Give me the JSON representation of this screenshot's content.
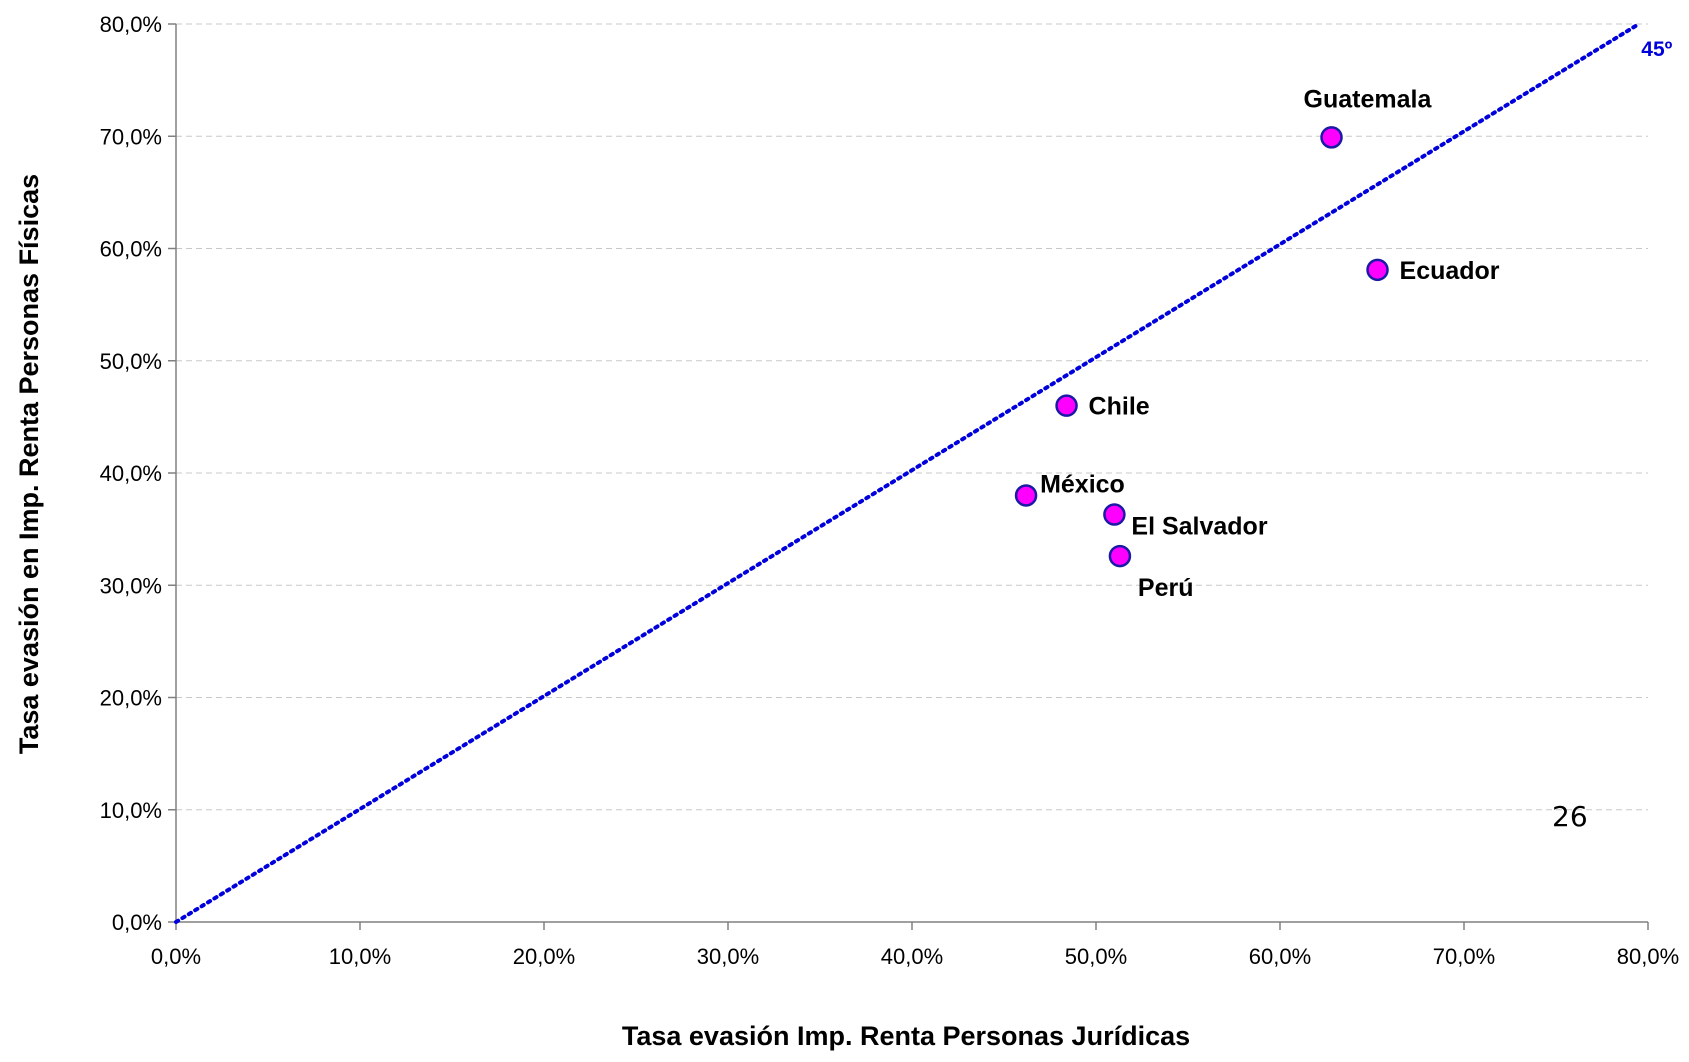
{
  "chart_data": {
    "type": "scatter",
    "xlabel": "Tasa evasión Imp. Renta Personas Jurídicas",
    "ylabel": "Tasa evasión en Imp. Renta Personas Físicas",
    "xlim": [
      0,
      80
    ],
    "ylim": [
      0,
      80
    ],
    "x_ticks": [
      "0,0%",
      "10,0%",
      "20,0%",
      "30,0%",
      "40,0%",
      "50,0%",
      "60,0%",
      "70,0%",
      "80,0%"
    ],
    "y_ticks": [
      "0,0%",
      "10,0%",
      "20,0%",
      "30,0%",
      "40,0%",
      "50,0%",
      "60,0%",
      "70,0%",
      "80,0%"
    ],
    "grid": "horizontal-dashed",
    "points": [
      {
        "label": "Guatemala",
        "x": 62.8,
        "y": 69.9
      },
      {
        "label": "Ecuador",
        "x": 65.3,
        "y": 58.1
      },
      {
        "label": "Chile",
        "x": 48.4,
        "y": 46.0
      },
      {
        "label": "México",
        "x": 46.2,
        "y": 38.0
      },
      {
        "label": "El Salvador",
        "x": 51.0,
        "y": 36.3
      },
      {
        "label": "Perú",
        "x": 51.3,
        "y": 32.6
      }
    ],
    "reference_line": {
      "label": "45º",
      "from": [
        0,
        0
      ],
      "to": [
        79.5,
        80
      ],
      "color": "#0000dd",
      "style": "dotted"
    },
    "marker_fill": "#ff00ff",
    "marker_stroke": "#1a1aa6"
  },
  "page_number": "26"
}
